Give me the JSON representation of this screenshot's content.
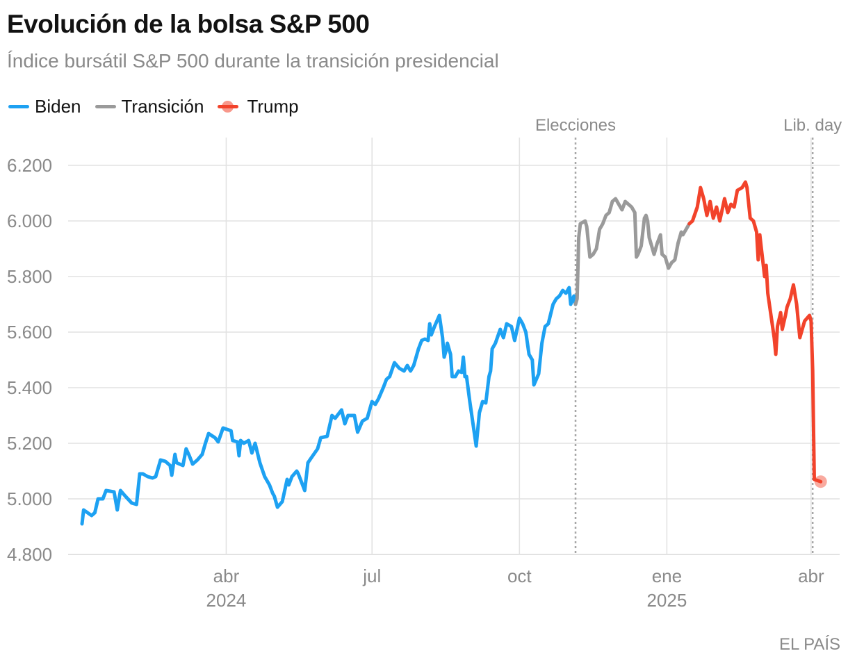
{
  "colors": {
    "biden": "#1da1f2",
    "transicion": "#9a9a9a",
    "trump": "#f2432b",
    "grid": "#e2e2e2",
    "axis_text": "#8a8a8a"
  },
  "header": {
    "title": "Evolución de la bolsa S&P 500",
    "subtitle": "Índice bursátil S&P 500 durante la transición presidencial"
  },
  "legend": {
    "biden": "Biden",
    "transicion": "Transición",
    "trump": "Trump"
  },
  "credit": "EL PAÍS",
  "chart_data": {
    "type": "line",
    "title": "Evolución de la bolsa S&P 500",
    "subtitle": "Índice bursátil S&P 500 durante la transición presidencial",
    "xlabel": "",
    "ylabel": "",
    "x_domain": [
      "2024-01-02",
      "2025-04-08"
    ],
    "ylim": [
      4800,
      6300
    ],
    "y_ticks": [
      4800,
      5000,
      5200,
      5400,
      5600,
      5800,
      6000,
      6200
    ],
    "y_tick_labels": [
      "4.800",
      "5.000",
      "5.200",
      "5.400",
      "5.600",
      "5.800",
      "6.000",
      "6.200"
    ],
    "x_ticks": [
      {
        "date": "2024-04-01",
        "label": "abr",
        "year": "2024"
      },
      {
        "date": "2024-07-01",
        "label": "jul",
        "year": ""
      },
      {
        "date": "2024-10-01",
        "label": "oct",
        "year": ""
      },
      {
        "date": "2025-01-01",
        "label": "ene",
        "year": "2025"
      },
      {
        "date": "2025-04-01",
        "label": "abr",
        "year": ""
      }
    ],
    "annotations": [
      {
        "date": "2024-11-05",
        "label": "Elecciones"
      },
      {
        "date": "2025-04-02",
        "label": "Lib. day"
      }
    ],
    "series": [
      {
        "name": "Biden",
        "points": [
          [
            "2024-01-02",
            4910
          ],
          [
            "2024-01-03",
            4960
          ],
          [
            "2024-01-08",
            4940
          ],
          [
            "2024-01-10",
            4950
          ],
          [
            "2024-01-12",
            5000
          ],
          [
            "2024-01-15",
            5000
          ],
          [
            "2024-01-17",
            5030
          ],
          [
            "2024-01-22",
            5025
          ],
          [
            "2024-01-24",
            4960
          ],
          [
            "2024-01-26",
            5030
          ],
          [
            "2024-01-29",
            5010
          ],
          [
            "2024-02-02",
            4985
          ],
          [
            "2024-02-05",
            4980
          ],
          [
            "2024-02-07",
            5090
          ],
          [
            "2024-02-09",
            5090
          ],
          [
            "2024-02-12",
            5080
          ],
          [
            "2024-02-15",
            5075
          ],
          [
            "2024-02-17",
            5080
          ],
          [
            "2024-02-20",
            5140
          ],
          [
            "2024-02-23",
            5135
          ],
          [
            "2024-02-26",
            5120
          ],
          [
            "2024-02-27",
            5085
          ],
          [
            "2024-02-29",
            5160
          ],
          [
            "2024-03-01",
            5130
          ],
          [
            "2024-03-05",
            5120
          ],
          [
            "2024-03-07",
            5180
          ],
          [
            "2024-03-09",
            5155
          ],
          [
            "2024-03-11",
            5125
          ],
          [
            "2024-03-14",
            5140
          ],
          [
            "2024-03-17",
            5160
          ],
          [
            "2024-03-19",
            5200
          ],
          [
            "2024-03-21",
            5235
          ],
          [
            "2024-03-25",
            5220
          ],
          [
            "2024-03-27",
            5205
          ],
          [
            "2024-03-30",
            5255
          ],
          [
            "2024-04-04",
            5245
          ],
          [
            "2024-04-05",
            5210
          ],
          [
            "2024-04-08",
            5205
          ],
          [
            "2024-04-09",
            5155
          ],
          [
            "2024-04-10",
            5210
          ],
          [
            "2024-04-12",
            5200
          ],
          [
            "2024-04-15",
            5210
          ],
          [
            "2024-04-17",
            5165
          ],
          [
            "2024-04-19",
            5200
          ],
          [
            "2024-04-22",
            5130
          ],
          [
            "2024-04-25",
            5080
          ],
          [
            "2024-04-28",
            5050
          ],
          [
            "2024-04-30",
            5020
          ],
          [
            "2024-05-01",
            5010
          ],
          [
            "2024-05-03",
            4970
          ],
          [
            "2024-05-06",
            4990
          ],
          [
            "2024-05-09",
            5070
          ],
          [
            "2024-05-10",
            5050
          ],
          [
            "2024-05-12",
            5080
          ],
          [
            "2024-05-15",
            5100
          ],
          [
            "2024-05-16",
            5090
          ],
          [
            "2024-05-20",
            5030
          ],
          [
            "2024-05-22",
            5130
          ],
          [
            "2024-05-25",
            5155
          ],
          [
            "2024-05-28",
            5180
          ],
          [
            "2024-05-30",
            5220
          ],
          [
            "2024-06-03",
            5225
          ],
          [
            "2024-06-06",
            5300
          ],
          [
            "2024-06-08",
            5290
          ],
          [
            "2024-06-12",
            5320
          ],
          [
            "2024-06-14",
            5270
          ],
          [
            "2024-06-16",
            5300
          ],
          [
            "2024-06-20",
            5300
          ],
          [
            "2024-06-22",
            5240
          ],
          [
            "2024-06-25",
            5280
          ],
          [
            "2024-06-28",
            5290
          ],
          [
            "2024-07-01",
            5350
          ],
          [
            "2024-07-03",
            5340
          ],
          [
            "2024-07-05",
            5360
          ],
          [
            "2024-07-08",
            5400
          ],
          [
            "2024-07-10",
            5430
          ],
          [
            "2024-07-12",
            5440
          ],
          [
            "2024-07-15",
            5490
          ],
          [
            "2024-07-18",
            5470
          ],
          [
            "2024-07-21",
            5460
          ],
          [
            "2024-07-23",
            5480
          ],
          [
            "2024-07-25",
            5460
          ],
          [
            "2024-07-27",
            5480
          ],
          [
            "2024-07-30",
            5540
          ],
          [
            "2024-08-01",
            5570
          ],
          [
            "2024-08-03",
            5575
          ],
          [
            "2024-08-05",
            5570
          ],
          [
            "2024-08-06",
            5630
          ],
          [
            "2024-08-07",
            5590
          ],
          [
            "2024-08-09",
            5620
          ],
          [
            "2024-08-12",
            5660
          ],
          [
            "2024-08-14",
            5580
          ],
          [
            "2024-08-15",
            5510
          ],
          [
            "2024-08-16",
            5530
          ],
          [
            "2024-08-17",
            5560
          ],
          [
            "2024-08-19",
            5520
          ],
          [
            "2024-08-20",
            5440
          ],
          [
            "2024-08-22",
            5440
          ],
          [
            "2024-08-24",
            5460
          ],
          [
            "2024-08-26",
            5455
          ],
          [
            "2024-08-27",
            5510
          ],
          [
            "2024-08-28",
            5440
          ],
          [
            "2024-08-29",
            5440
          ],
          [
            "2024-08-31",
            5350
          ],
          [
            "2024-09-02",
            5270
          ],
          [
            "2024-09-04",
            5190
          ],
          [
            "2024-09-06",
            5310
          ],
          [
            "2024-09-08",
            5350
          ],
          [
            "2024-09-10",
            5345
          ],
          [
            "2024-09-12",
            5440
          ],
          [
            "2024-09-13",
            5460
          ],
          [
            "2024-09-14",
            5540
          ],
          [
            "2024-09-16",
            5560
          ],
          [
            "2024-09-19",
            5610
          ],
          [
            "2024-09-21",
            5580
          ],
          [
            "2024-09-23",
            5630
          ],
          [
            "2024-09-26",
            5620
          ],
          [
            "2024-09-28",
            5570
          ],
          [
            "2024-10-01",
            5650
          ],
          [
            "2024-10-03",
            5630
          ],
          [
            "2024-10-05",
            5600
          ],
          [
            "2024-10-07",
            5520
          ],
          [
            "2024-10-09",
            5500
          ],
          [
            "2024-10-10",
            5410
          ],
          [
            "2024-10-13",
            5450
          ],
          [
            "2024-10-15",
            5560
          ],
          [
            "2024-10-17",
            5620
          ],
          [
            "2024-10-19",
            5630
          ],
          [
            "2024-10-22",
            5700
          ],
          [
            "2024-10-24",
            5720
          ],
          [
            "2024-10-26",
            5730
          ],
          [
            "2024-10-28",
            5750
          ],
          [
            "2024-10-30",
            5740
          ],
          [
            "2024-11-01",
            5760
          ],
          [
            "2024-11-02",
            5700
          ],
          [
            "2024-11-04",
            5730
          ],
          [
            "2024-11-05",
            5700
          ]
        ]
      },
      {
        "name": "Transición",
        "points": [
          [
            "2024-11-05",
            5700
          ],
          [
            "2024-11-06",
            5720
          ],
          [
            "2024-11-07",
            5940
          ],
          [
            "2024-11-08",
            5990
          ],
          [
            "2024-11-11",
            6000
          ],
          [
            "2024-11-12",
            5980
          ],
          [
            "2024-11-14",
            5870
          ],
          [
            "2024-11-16",
            5880
          ],
          [
            "2024-11-18",
            5900
          ],
          [
            "2024-11-20",
            5970
          ],
          [
            "2024-11-22",
            5990
          ],
          [
            "2024-11-24",
            6020
          ],
          [
            "2024-11-26",
            6030
          ],
          [
            "2024-11-28",
            6070
          ],
          [
            "2024-11-30",
            6080
          ],
          [
            "2024-12-02",
            6060
          ],
          [
            "2024-12-04",
            6040
          ],
          [
            "2024-12-06",
            6070
          ],
          [
            "2024-12-08",
            6060
          ],
          [
            "2024-12-10",
            6050
          ],
          [
            "2024-12-12",
            6030
          ],
          [
            "2024-12-13",
            5870
          ],
          [
            "2024-12-14",
            5880
          ],
          [
            "2024-12-16",
            5910
          ],
          [
            "2024-12-18",
            6010
          ],
          [
            "2024-12-19",
            6020
          ],
          [
            "2024-12-20",
            6000
          ],
          [
            "2024-12-21",
            5940
          ],
          [
            "2024-12-24",
            5880
          ],
          [
            "2024-12-26",
            5920
          ],
          [
            "2024-12-28",
            5950
          ],
          [
            "2024-12-29",
            5880
          ],
          [
            "2024-12-31",
            5870
          ],
          [
            "2025-01-02",
            5830
          ],
          [
            "2025-01-04",
            5850
          ],
          [
            "2025-01-06",
            5860
          ],
          [
            "2025-01-08",
            5920
          ],
          [
            "2025-01-10",
            5960
          ],
          [
            "2025-01-11",
            5950
          ],
          [
            "2025-01-13",
            5970
          ],
          [
            "2025-01-15",
            5990
          ]
        ]
      },
      {
        "name": "Trump",
        "points": [
          [
            "2025-01-15",
            5990
          ],
          [
            "2025-01-17",
            6000
          ],
          [
            "2025-01-20",
            6050
          ],
          [
            "2025-01-22",
            6120
          ],
          [
            "2025-01-24",
            6080
          ],
          [
            "2025-01-26",
            6020
          ],
          [
            "2025-01-28",
            6070
          ],
          [
            "2025-01-30",
            6010
          ],
          [
            "2025-02-01",
            6050
          ],
          [
            "2025-02-03",
            6000
          ],
          [
            "2025-02-06",
            6080
          ],
          [
            "2025-02-08",
            6030
          ],
          [
            "2025-02-10",
            6060
          ],
          [
            "2025-02-12",
            6050
          ],
          [
            "2025-02-14",
            6110
          ],
          [
            "2025-02-17",
            6120
          ],
          [
            "2025-02-19",
            6140
          ],
          [
            "2025-02-20",
            6120
          ],
          [
            "2025-02-22",
            6010
          ],
          [
            "2025-02-24",
            6000
          ],
          [
            "2025-02-26",
            5960
          ],
          [
            "2025-02-27",
            5860
          ],
          [
            "2025-02-28",
            5950
          ],
          [
            "2025-03-01",
            5900
          ],
          [
            "2025-03-03",
            5800
          ],
          [
            "2025-03-04",
            5840
          ],
          [
            "2025-03-05",
            5740
          ],
          [
            "2025-03-07",
            5660
          ],
          [
            "2025-03-09",
            5580
          ],
          [
            "2025-03-10",
            5520
          ],
          [
            "2025-03-11",
            5620
          ],
          [
            "2025-03-13",
            5670
          ],
          [
            "2025-03-14",
            5610
          ],
          [
            "2025-03-16",
            5660
          ],
          [
            "2025-03-17",
            5690
          ],
          [
            "2025-03-19",
            5720
          ],
          [
            "2025-03-21",
            5770
          ],
          [
            "2025-03-23",
            5700
          ],
          [
            "2025-03-25",
            5580
          ],
          [
            "2025-03-26",
            5600
          ],
          [
            "2025-03-28",
            5640
          ],
          [
            "2025-03-31",
            5660
          ],
          [
            "2025-04-01",
            5640
          ],
          [
            "2025-04-02",
            5460
          ],
          [
            "2025-04-03",
            5070
          ],
          [
            "2025-04-07",
            5062
          ]
        ]
      }
    ]
  }
}
